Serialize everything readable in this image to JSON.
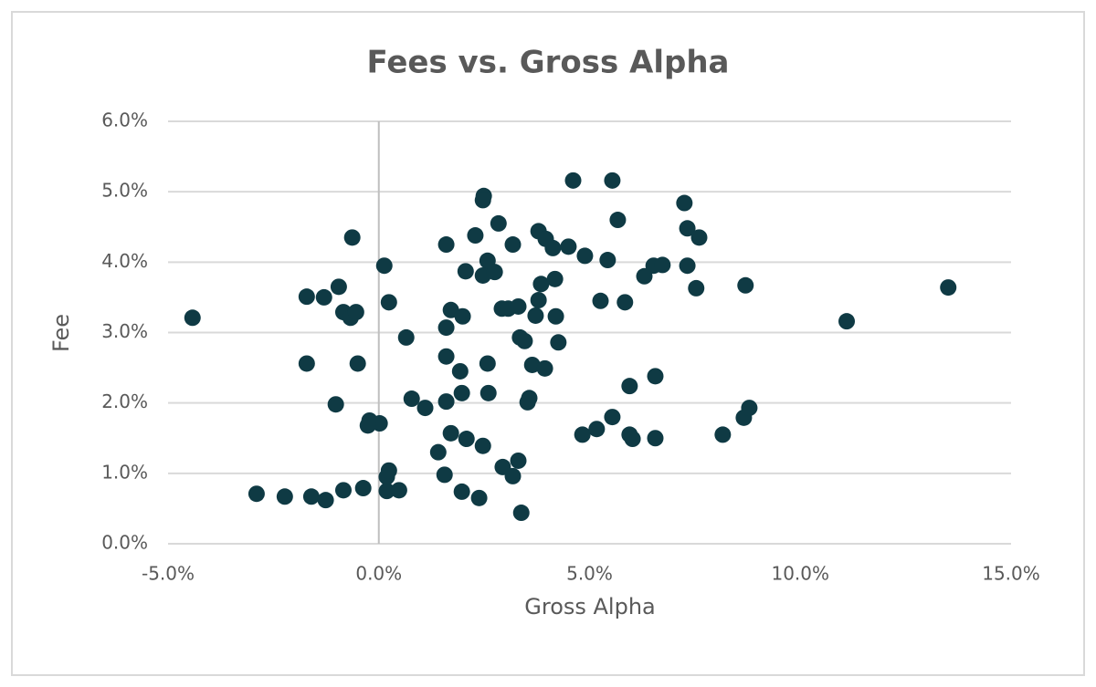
{
  "chart_data": {
    "type": "scatter",
    "title": "Fees vs. Gross Alpha",
    "x_label": "Gross Alpha",
    "y_label": "Fee",
    "color": "#0f3a44",
    "grid": true,
    "xlim": [
      -5,
      15
    ],
    "xticks": [
      {
        "value": -5,
        "label": "-5.0%"
      },
      {
        "value": 0,
        "label": "0.0%"
      },
      {
        "value": 5,
        "label": "5.0%"
      },
      {
        "value": 10,
        "label": "10.0%"
      },
      {
        "value": 15,
        "label": "15.0%"
      }
    ],
    "ylim": [
      0,
      6
    ],
    "yticks": [
      {
        "value": 0,
        "label": "0.0%"
      },
      {
        "value": 1,
        "label": "1.0%"
      },
      {
        "value": 2,
        "label": "2.0%"
      },
      {
        "value": 3,
        "label": "3.0%"
      },
      {
        "value": 4,
        "label": "4.0%"
      },
      {
        "value": 5,
        "label": "5.0%"
      },
      {
        "value": 6,
        "label": "6.0%"
      }
    ],
    "x": [
      -4.42,
      -2.9,
      -2.23,
      -1.6,
      -1.26,
      -0.84,
      -0.37,
      0.19,
      0.48,
      0.19,
      0.24,
      -1.71,
      -1.3,
      -0.95,
      -0.84,
      -0.67,
      -0.54,
      -0.63,
      -1.71,
      -0.5,
      -1.02,
      -0.22,
      0.02,
      -0.26,
      0.13,
      0.24,
      0.65,
      0.78,
      1.1,
      1.6,
      1.71,
      1.6,
      1.99,
      1.6,
      1.93,
      1.97,
      1.6,
      1.71,
      2.08,
      1.41,
      1.56,
      1.97,
      2.38,
      2.47,
      2.49,
      2.47,
      2.29,
      2.06,
      2.58,
      2.47,
      2.75,
      2.84,
      3.18,
      2.58,
      2.6,
      2.92,
      3.07,
      3.31,
      3.35,
      3.46,
      2.94,
      3.18,
      3.31,
      3.38,
      3.53,
      3.57,
      3.64,
      3.94,
      3.72,
      3.79,
      3.85,
      3.79,
      3.96,
      4.13,
      4.18,
      4.2,
      4.26,
      4.5,
      4.61,
      4.89,
      4.83,
      5.17,
      5.26,
      5.43,
      5.54,
      5.67,
      5.54,
      5.84,
      5.95,
      5.95,
      6.02,
      6.3,
      6.52,
      6.73,
      6.56,
      6.56,
      7.25,
      7.32,
      7.6,
      7.32,
      7.53,
      8.16,
      8.7,
      8.66,
      8.79,
      11.1,
      13.51
    ],
    "y": [
      3.21,
      0.71,
      0.67,
      0.67,
      0.62,
      0.76,
      0.79,
      0.75,
      0.76,
      0.95,
      1.04,
      3.51,
      3.5,
      3.65,
      3.29,
      3.21,
      3.29,
      4.35,
      2.56,
      2.56,
      1.98,
      1.75,
      1.71,
      1.68,
      3.95,
      3.43,
      2.93,
      2.06,
      1.93,
      4.25,
      3.32,
      3.07,
      3.23,
      2.66,
      2.45,
      2.14,
      2.02,
      1.57,
      1.49,
      1.3,
      0.98,
      0.74,
      0.65,
      1.39,
      4.94,
      4.88,
      4.38,
      3.87,
      4.02,
      3.81,
      3.86,
      4.55,
      4.25,
      2.56,
      2.14,
      3.34,
      3.34,
      3.37,
      2.93,
      2.88,
      1.09,
      0.96,
      1.18,
      0.44,
      2.01,
      2.07,
      2.54,
      2.49,
      3.24,
      3.46,
      3.69,
      4.44,
      4.33,
      4.2,
      3.76,
      3.23,
      2.86,
      4.22,
      5.16,
      4.09,
      1.55,
      1.63,
      3.45,
      4.03,
      5.16,
      4.6,
      1.8,
      3.43,
      2.24,
      1.55,
      1.49,
      3.8,
      3.95,
      3.96,
      2.38,
      1.5,
      4.84,
      4.48,
      4.35,
      3.95,
      3.63,
      1.55,
      3.67,
      1.79,
      1.93,
      3.16,
      3.64
    ]
  }
}
